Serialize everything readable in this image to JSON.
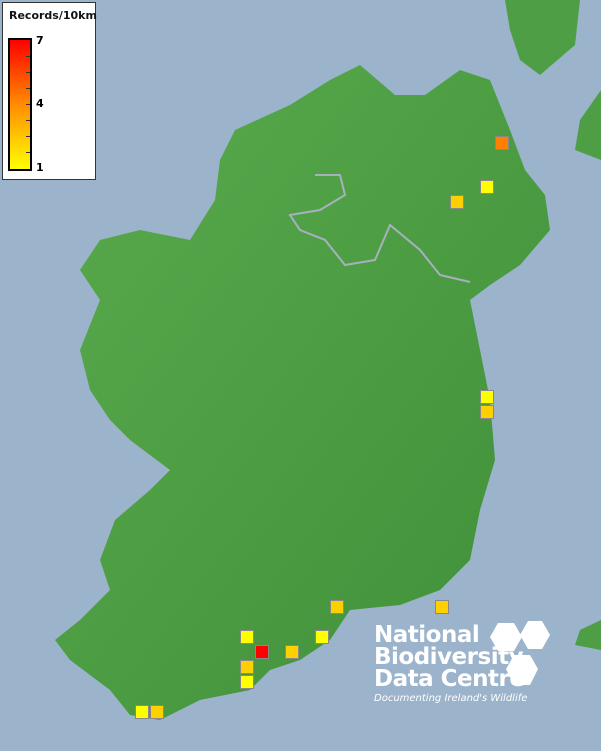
{
  "legend": {
    "title": "Records/10km",
    "ticks": [
      "7",
      "4",
      "1"
    ],
    "min": 1,
    "max": 7,
    "colors": {
      "high": "#ff0000",
      "mid": "#ff8c00",
      "low": "#ffff00"
    }
  },
  "map": {
    "sea_color": "#9bb3cb",
    "land_color": "#4e9e45",
    "border_color": "#a8b0c0"
  },
  "records": [
    {
      "count": 5,
      "color": "#ff7f00"
    },
    {
      "count": 1,
      "color": "#ffff00"
    },
    {
      "count": 2,
      "color": "#ffd000"
    },
    {
      "count": 1,
      "color": "#ffff00"
    },
    {
      "count": 2,
      "color": "#ffd000"
    },
    {
      "count": 2,
      "color": "#ffd000"
    },
    {
      "count": 2,
      "color": "#ffd000"
    },
    {
      "count": 1,
      "color": "#ffff00"
    },
    {
      "count": 1,
      "color": "#ffff00"
    },
    {
      "count": 7,
      "color": "#ff0000"
    },
    {
      "count": 2,
      "color": "#ffd000"
    },
    {
      "count": 2,
      "color": "#ffd000"
    },
    {
      "count": 1,
      "color": "#ffff00"
    },
    {
      "count": 1,
      "color": "#ffff00"
    },
    {
      "count": 2,
      "color": "#ffd000"
    }
  ],
  "logo": {
    "line1": "National",
    "line2": "Biodiversity",
    "line3": "Data Centre",
    "tagline": "Documenting Ireland's Wildlife"
  }
}
